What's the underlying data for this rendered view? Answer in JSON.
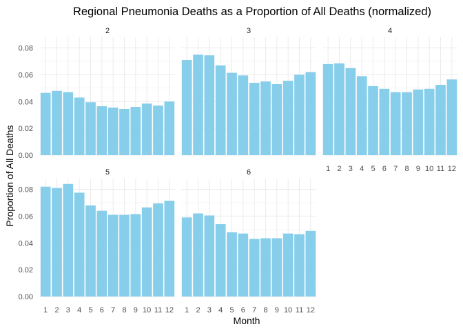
{
  "chart_data": {
    "type": "bar",
    "title": "Regional Pneumonia Deaths as a Proportion of All Deaths (normalized)",
    "xlabel": "Month",
    "ylabel": "Proportion of All Deaths",
    "ylim": [
      0,
      0.088
    ],
    "yticks": [
      "0.00",
      "0.02",
      "0.04",
      "0.06",
      "0.08"
    ],
    "categories": [
      "1",
      "2",
      "3",
      "4",
      "5",
      "6",
      "7",
      "8",
      "9",
      "10",
      "11",
      "12"
    ],
    "bar_color": "#87CEEB",
    "grid": true,
    "facets": [
      {
        "name": "2",
        "values": [
          0.0465,
          0.048,
          0.047,
          0.043,
          0.0395,
          0.0365,
          0.0355,
          0.0345,
          0.036,
          0.0385,
          0.037,
          0.04
        ]
      },
      {
        "name": "3",
        "values": [
          0.071,
          0.075,
          0.0745,
          0.067,
          0.0615,
          0.0595,
          0.054,
          0.055,
          0.053,
          0.0555,
          0.06,
          0.062
        ]
      },
      {
        "name": "4",
        "values": [
          0.068,
          0.0685,
          0.065,
          0.059,
          0.0515,
          0.0495,
          0.047,
          0.047,
          0.049,
          0.0495,
          0.0525,
          0.0565
        ]
      },
      {
        "name": "5",
        "values": [
          0.082,
          0.081,
          0.084,
          0.0775,
          0.068,
          0.064,
          0.061,
          0.061,
          0.0615,
          0.0665,
          0.0695,
          0.0715
        ]
      },
      {
        "name": "6",
        "values": [
          0.059,
          0.062,
          0.0605,
          0.054,
          0.048,
          0.047,
          0.043,
          0.0435,
          0.0435,
          0.047,
          0.0465,
          0.049
        ]
      }
    ]
  }
}
